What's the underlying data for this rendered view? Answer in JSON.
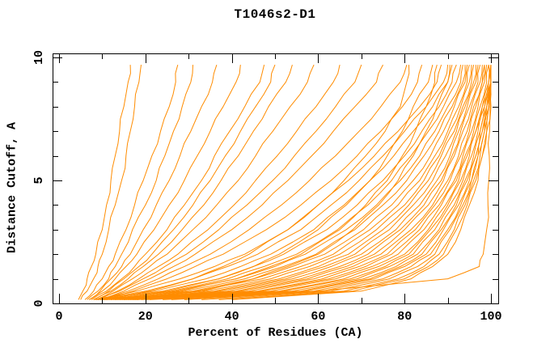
{
  "title": "T1046s2-D1",
  "axes": {
    "x": {
      "label": "Percent of Residues (CA)",
      "min": 0,
      "max": 100,
      "major_tick_values": [
        0,
        20,
        40,
        60,
        80,
        100
      ],
      "major_tick_labels": [
        "0",
        "20",
        "40",
        "60",
        "80",
        "100"
      ],
      "minor_tick_step": 10
    },
    "y": {
      "label": "Distance Cutoff, A",
      "min": 0,
      "max": 10,
      "major_tick_values": [
        0,
        5,
        10
      ],
      "major_tick_labels": [
        "0",
        "5",
        "10"
      ],
      "minor_tick_step": 1
    }
  },
  "colors": {
    "curve": "#ff8c00",
    "axis": "#000000",
    "text": "#000000",
    "background": "#ffffff"
  },
  "chart_data": {
    "type": "line",
    "title": "T1046s2-D1",
    "xlabel": "Percent of Residues (CA)",
    "ylabel": "Distance Cutoff, A",
    "xlim": [
      0,
      100
    ],
    "ylim": [
      0,
      10
    ],
    "grid": false,
    "legend": "none",
    "series_note": "one orange curve per model; each array gives percent of CA residues (x) at each distance cutoff level (y)",
    "y_cutoff_levels": [
      0.15,
      0.5,
      1,
      1.5,
      2,
      3,
      4,
      5,
      6,
      7,
      8,
      9,
      9.7
    ],
    "series": [
      [
        4.5,
        5.5,
        6.5,
        7.5,
        8.5,
        10,
        11,
        12,
        13,
        14,
        15,
        16,
        16.5
      ],
      [
        5,
        6.5,
        8,
        9,
        10,
        11.5,
        13,
        14.5,
        15.5,
        16.5,
        17.5,
        18.5,
        19
      ],
      [
        6,
        8,
        10,
        11.5,
        13,
        15.5,
        17.5,
        19.5,
        21.5,
        23.5,
        25.5,
        27,
        27.5
      ],
      [
        6.5,
        9,
        11.5,
        13,
        14.5,
        17,
        20,
        22.5,
        24.5,
        26.5,
        28.5,
        30.5,
        31
      ],
      [
        7,
        9.5,
        12,
        14.5,
        16.5,
        19.5,
        22.5,
        25.5,
        28,
        30.5,
        33,
        35.5,
        36.5
      ],
      [
        7,
        10,
        13,
        15.5,
        18,
        22,
        25.5,
        29,
        32,
        35,
        38,
        41,
        42
      ],
      [
        7.5,
        11,
        14.5,
        17.5,
        20,
        25,
        29,
        33,
        36,
        39.5,
        43,
        46.5,
        47.5
      ],
      [
        8,
        11.5,
        15,
        18.5,
        21.5,
        26.5,
        31,
        35,
        38.5,
        42,
        45.5,
        49,
        50
      ],
      [
        8,
        12,
        16,
        19.5,
        23,
        28.5,
        33.5,
        37.5,
        41.5,
        45,
        48.5,
        52.5,
        54
      ],
      [
        8.5,
        12.5,
        17,
        21,
        25,
        31,
        36.5,
        41.5,
        45.5,
        49.5,
        53.5,
        57.5,
        59
      ],
      [
        9,
        13.5,
        18.5,
        23,
        27.5,
        34.5,
        40.5,
        45.5,
        50.5,
        55,
        59.5,
        63.5,
        65
      ],
      [
        9,
        14,
        19.5,
        24.5,
        29.5,
        37,
        43.5,
        49.5,
        54.5,
        59.5,
        64,
        68.5,
        70
      ],
      [
        9.5,
        15,
        21,
        26.5,
        31.5,
        40,
        47,
        53,
        58.5,
        63.5,
        68.5,
        73.5,
        75
      ],
      [
        10,
        16,
        23,
        29,
        35,
        44,
        51.5,
        58,
        64,
        69.5,
        74.5,
        79,
        80.5
      ],
      [
        10,
        17,
        25,
        31.5,
        38,
        48,
        56,
        63,
        69,
        74.5,
        79.5,
        83,
        84
      ],
      [
        11,
        21,
        31,
        38,
        44,
        53,
        60,
        66,
        71,
        75.5,
        79,
        80.5,
        81
      ],
      [
        12,
        25,
        37,
        45,
        51,
        60,
        66.5,
        72,
        76,
        79.5,
        82,
        85.5,
        86.5
      ],
      [
        13,
        28,
        41,
        49,
        56,
        65,
        71,
        76,
        79.5,
        82.5,
        85,
        87,
        87.5
      ],
      [
        15,
        33,
        45,
        53,
        60,
        68,
        74,
        78.5,
        82,
        85,
        87.5,
        90,
        90.5
      ],
      [
        8,
        18,
        28,
        36,
        43,
        53,
        60,
        67,
        73,
        78.5,
        83.5,
        87.5,
        88.5
      ],
      [
        9,
        20,
        31,
        39,
        46,
        56,
        63,
        69.5,
        75,
        80,
        85,
        89,
        90
      ],
      [
        10,
        22,
        34,
        42,
        49,
        59,
        66,
        72,
        77.5,
        82,
        86.5,
        90,
        91
      ],
      [
        8.5,
        24,
        37,
        45,
        52,
        62,
        69,
        75,
        80,
        84,
        88,
        91,
        92
      ],
      [
        11,
        26,
        39,
        47.5,
        55,
        64.5,
        71.5,
        77,
        81.5,
        85.5,
        89,
        92,
        93
      ],
      [
        9.5,
        27,
        41,
        50,
        57,
        66.5,
        73.5,
        79,
        83.5,
        87,
        90,
        93,
        93.5
      ],
      [
        12,
        29,
        43,
        52,
        59.5,
        68.5,
        75,
        80.5,
        84.5,
        88,
        91,
        93.5,
        94
      ],
      [
        10.5,
        31,
        45,
        54,
        61.5,
        70.5,
        77,
        82,
        86,
        89,
        91.5,
        94,
        94.5
      ],
      [
        13,
        32,
        47,
        56,
        63.5,
        72,
        78.5,
        83.5,
        87,
        90,
        92.5,
        94.5,
        95
      ],
      [
        11.5,
        34,
        49,
        58,
        65,
        73.5,
        80,
        84.5,
        88,
        90.5,
        93,
        95,
        95.5
      ],
      [
        14,
        36,
        51,
        60,
        67,
        75,
        81,
        85.5,
        88.5,
        91.5,
        93.5,
        95.5,
        96
      ],
      [
        12.5,
        37,
        52.5,
        61.5,
        68.5,
        76.5,
        82,
        86.5,
        89.5,
        92,
        94,
        96,
        96.5
      ],
      [
        15,
        39,
        54,
        63,
        70,
        78,
        83.5,
        87.5,
        90.5,
        92.5,
        94.5,
        96.5,
        97
      ],
      [
        13.5,
        41,
        56,
        65,
        71.5,
        79,
        84.5,
        88.5,
        91,
        93,
        95,
        97,
        97.5
      ],
      [
        16,
        42,
        57.5,
        66.5,
        73,
        80,
        85.5,
        89,
        91.5,
        93.5,
        95.5,
        97.5,
        98
      ],
      [
        14.5,
        44,
        59,
        68,
        74.5,
        81.5,
        86.5,
        90,
        92.5,
        94.5,
        96,
        98,
        98.5
      ],
      [
        17,
        46,
        61,
        69.5,
        76,
        82.5,
        87,
        90.5,
        93,
        95,
        96.5,
        98,
        98.5
      ],
      [
        15.5,
        47,
        62.5,
        71,
        77,
        83.5,
        88,
        91.5,
        93.5,
        95.5,
        97,
        98.5,
        99
      ],
      [
        18,
        49,
        64,
        72.5,
        78.5,
        84.5,
        88.5,
        92,
        94,
        96,
        97.5,
        99,
        99.5
      ],
      [
        16.5,
        51,
        66,
        74,
        80,
        85.5,
        89.5,
        92.5,
        94.5,
        96.5,
        98,
        99.5,
        99.5
      ],
      [
        19,
        52,
        67.5,
        75.5,
        81,
        86,
        90,
        93,
        95,
        96.5,
        98,
        99.5,
        100
      ],
      [
        17.5,
        54,
        69,
        76.5,
        82,
        87,
        90.5,
        93.5,
        95.5,
        97,
        98.5,
        100,
        100
      ],
      [
        20,
        56,
        70.5,
        78,
        83,
        88,
        91.5,
        94,
        96,
        97.5,
        98.5,
        100,
        100
      ],
      [
        21,
        57,
        72,
        79,
        84,
        88.5,
        92,
        94.5,
        96.5,
        97.5,
        99,
        100,
        100
      ],
      [
        24,
        59,
        73,
        80,
        85,
        89,
        92.5,
        95,
        96.5,
        98,
        99,
        100,
        100
      ],
      [
        26,
        61,
        75,
        81.5,
        86,
        90,
        93,
        95.5,
        97,
        98,
        99,
        100,
        100
      ],
      [
        29,
        63,
        76.5,
        83,
        87,
        90.5,
        93.5,
        95.5,
        97,
        98.5,
        99.5,
        100,
        100
      ],
      [
        33,
        66,
        78.5,
        84.5,
        88,
        91.5,
        94,
        96,
        97.5,
        98.5,
        99.5,
        100,
        100
      ],
      [
        37,
        68,
        80,
        85.5,
        89,
        92,
        94.5,
        96.5,
        98,
        99,
        99.5,
        100,
        100
      ],
      [
        40,
        70,
        81.5,
        86.5,
        90,
        93,
        95,
        97,
        98,
        99,
        100,
        100,
        100
      ],
      [
        10,
        60,
        90,
        97.3,
        98.2,
        99,
        99.3,
        99.5,
        99.6,
        99.7,
        99.8,
        99.9,
        100
      ]
    ]
  }
}
